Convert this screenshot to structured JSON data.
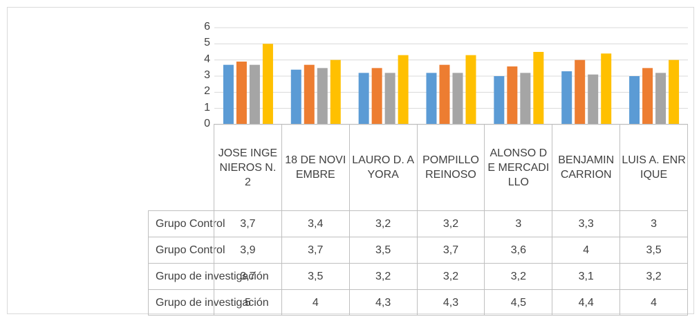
{
  "chart_data": {
    "type": "bar",
    "categories": [
      "JOSE INGENIEROS N. 2",
      "18 DE NOVIEMBRE",
      "LAURO D. AYORA",
      "POMPILLO REINOSO",
      "ALONSO DE MERCADILLO",
      "BENJAMIN CARRION",
      "LUIS A. ENRIQUE"
    ],
    "series": [
      {
        "name": "Grupo Control",
        "color": "#5b9bd5",
        "values": [
          3.7,
          3.4,
          3.2,
          3.2,
          3,
          3.3,
          3
        ],
        "value_labels": [
          "3,7",
          "3,4",
          "3,2",
          "3,2",
          "3",
          "3,3",
          "3"
        ]
      },
      {
        "name": "Grupo Control",
        "color": "#ed7d31",
        "values": [
          3.9,
          3.7,
          3.5,
          3.7,
          3.6,
          4,
          3.5
        ],
        "value_labels": [
          "3,9",
          "3,7",
          "3,5",
          "3,7",
          "3,6",
          "4",
          "3,5"
        ]
      },
      {
        "name": "Grupo de investigación",
        "color": "#a5a5a5",
        "values": [
          3.7,
          3.5,
          3.2,
          3.2,
          3.2,
          3.1,
          3.2
        ],
        "value_labels": [
          "3,7",
          "3,5",
          "3,2",
          "3,2",
          "3,2",
          "3,1",
          "3,2"
        ]
      },
      {
        "name": "Grupo de investigación",
        "color": "#ffc000",
        "values": [
          5,
          4,
          4.3,
          4.3,
          4.5,
          4.4,
          4
        ],
        "value_labels": [
          "5",
          "4",
          "4,3",
          "4,3",
          "4,5",
          "4,4",
          "4"
        ]
      }
    ],
    "ylim": [
      0,
      6
    ],
    "yticks": [
      0,
      1,
      2,
      3,
      4,
      5,
      6
    ],
    "grid": true
  }
}
